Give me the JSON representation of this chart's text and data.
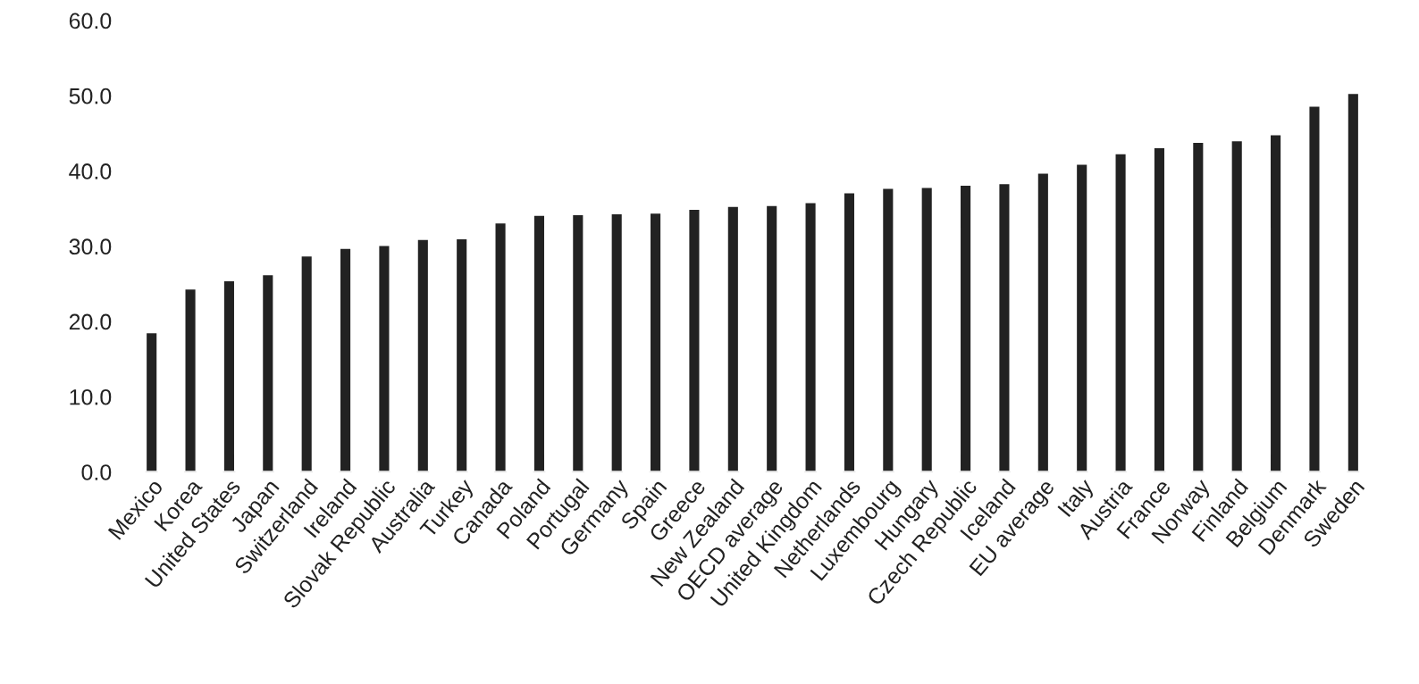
{
  "chart_data": {
    "type": "bar",
    "categories": [
      "Mexico",
      "Korea",
      "United States",
      "Japan",
      "Switzerland",
      "Ireland",
      "Slovak Republic",
      "Australia",
      "Turkey",
      "Canada",
      "Poland",
      "Portugal",
      "Germany",
      "Spain",
      "Greece",
      "New Zealand",
      "OECD average",
      "United Kingdom",
      "Netherlands",
      "Luxembourg",
      "Hungary",
      "Czech Republic",
      "Iceland",
      "EU average",
      "Italy",
      "Austria",
      "France",
      "Norway",
      "Finland",
      "Belgium",
      "Denmark",
      "Sweden"
    ],
    "values": [
      18.6,
      24.4,
      25.5,
      26.3,
      28.8,
      29.8,
      30.2,
      31.0,
      31.1,
      33.2,
      34.2,
      34.3,
      34.4,
      34.5,
      35.0,
      35.4,
      35.5,
      35.9,
      37.2,
      37.8,
      37.9,
      38.2,
      38.4,
      39.8,
      41.0,
      42.4,
      43.2,
      43.9,
      44.1,
      44.9,
      48.7,
      50.4
    ],
    "color": "#222222",
    "ylim": [
      0,
      60
    ],
    "yticks": [
      {
        "value": 0,
        "label": "0.0"
      },
      {
        "value": 10,
        "label": "10.0"
      },
      {
        "value": 20,
        "label": "20.0"
      },
      {
        "value": 30,
        "label": "30.0"
      },
      {
        "value": 40,
        "label": "40.0"
      },
      {
        "value": 50,
        "label": "50.0"
      },
      {
        "value": 60,
        "label": "60.0"
      }
    ],
    "grid": false
  }
}
